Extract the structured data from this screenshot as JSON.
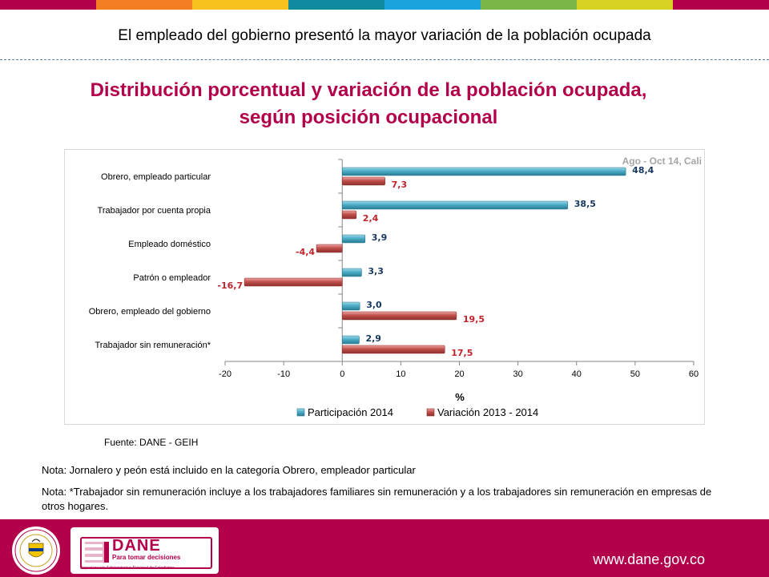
{
  "header": {
    "stripe_colors": [
      "#b2004a",
      "#f27d22",
      "#f7c21d",
      "#0f8a9e",
      "#1aa3dc",
      "#7ab648",
      "#d8d225",
      "#b2004a"
    ],
    "headline": "El empleado del gobierno presentó la mayor variación de la población ocupada"
  },
  "colors": {
    "accent": "#b2004a",
    "series_blue": "#4bacc6",
    "series_red": "#c0504d"
  },
  "chart_data": {
    "type": "bar",
    "orientation": "horizontal",
    "title_line1": "Distribución porcentual y variación de la población ocupada,",
    "title_line2": "según posición ocupacional",
    "annotation": "Ago - Oct 14, Cali",
    "xlabel": "%",
    "xlim": [
      -20,
      60
    ],
    "xticks": [
      -20,
      -10,
      0,
      10,
      20,
      30,
      40,
      50,
      60
    ],
    "categories": [
      "Obrero, empleado particular",
      "Trabajador por cuenta propia",
      "Empleado doméstico",
      "Patrón o empleador",
      "Obrero, empleado del gobierno",
      "Trabajador sin remuneración*"
    ],
    "series": [
      {
        "name": "Participación 2014",
        "values": [
          48.4,
          38.5,
          3.9,
          3.3,
          3.0,
          2.9
        ],
        "labels": [
          "48,4",
          "38,5",
          "3,9",
          "3,3",
          "3,0",
          "2,9"
        ]
      },
      {
        "name": "Variación 2013 - 2014",
        "values": [
          7.3,
          2.4,
          -4.4,
          -16.7,
          19.5,
          17.5
        ],
        "labels": [
          "7,3",
          "2,4",
          "-4,4",
          "-16,7",
          "19,5",
          "17,5"
        ]
      }
    ],
    "legend_position": "bottom",
    "grid": false
  },
  "source": "Fuente: DANE - GEIH",
  "notes": {
    "note1": "Nota: Jornalero y peón está incluido en la categoría Obrero, empleador particular",
    "note2": "Nota: *Trabajador sin remuneración incluye a los trabajadores familiares sin remuneración y a los trabajadores sin remuneración en empresas de otros hogares."
  },
  "footer": {
    "logo_word": "DANE",
    "logo_tagline": "Para tomar decisiones",
    "logo_subtitle": "Departamento Administrativo Nacional de Estadística",
    "seal_icon": "colombia-seal-icon",
    "website": "www.dane.gov.co"
  }
}
